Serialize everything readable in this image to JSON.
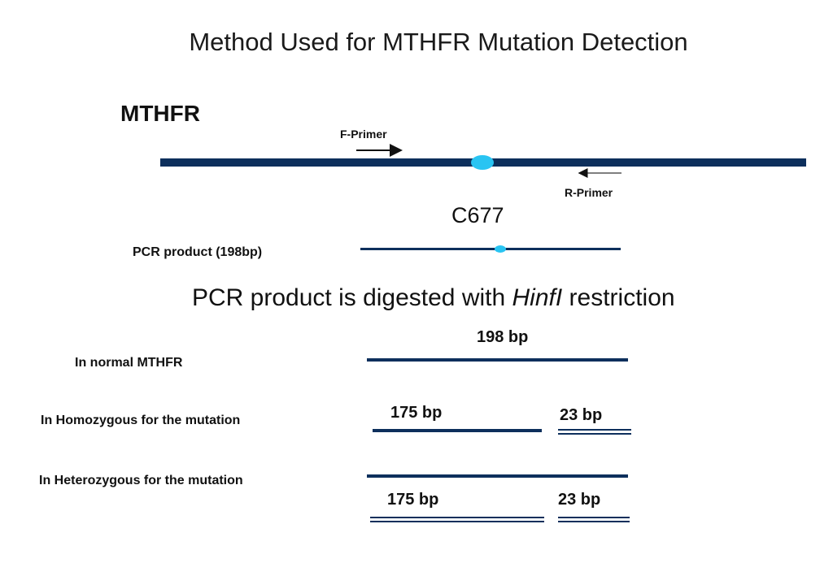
{
  "title": "Method Used for MTHFR Mutation Detection",
  "gene_label": "MTHFR",
  "forward_primer": "F-Primer",
  "reverse_primer": "R-Primer",
  "mutation_site": "C677",
  "pcr_product_label": "PCR product (198bp)",
  "digestion": {
    "prefix": "PCR product is digested with ",
    "enzyme": "HinfI",
    "suffix": " restriction"
  },
  "normal": {
    "label": "In normal MTHFR",
    "fragment": "198 bp"
  },
  "homozygous": {
    "label": "In Homozygous for the mutation",
    "fragment_a": "175 bp",
    "fragment_b": "23 bp"
  },
  "heterozygous": {
    "label": "In Heterozygous for the mutation",
    "fragment_a": "175 bp",
    "fragment_b": "23 bp"
  },
  "colors": {
    "dna": "#0d2f5c",
    "site_marker": "#29c4f2",
    "arrow": "#111111"
  }
}
